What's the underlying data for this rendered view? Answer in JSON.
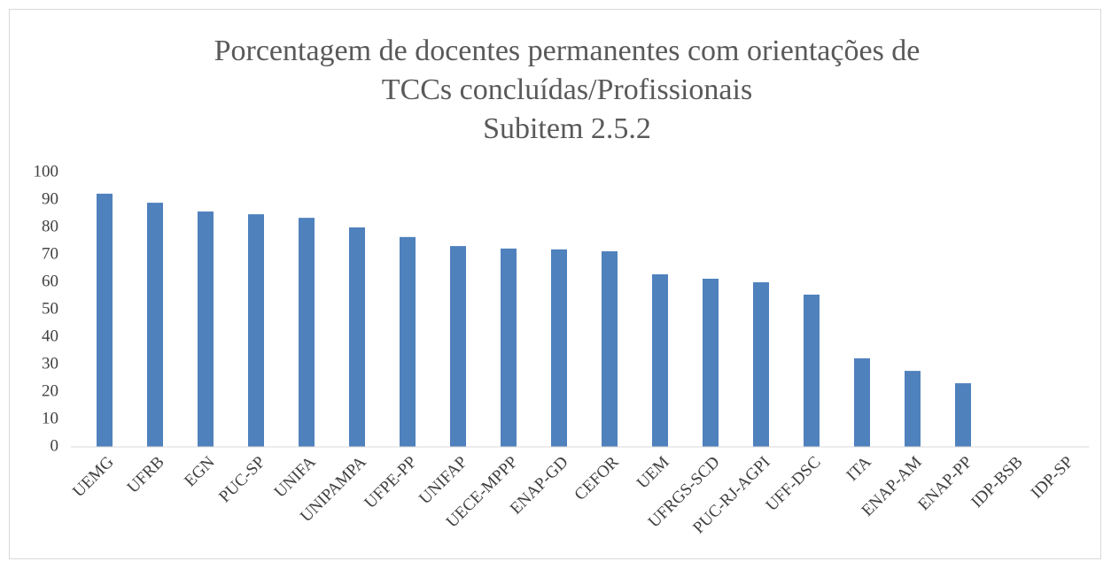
{
  "chart_data": {
    "type": "bar",
    "title": [
      "Porcentagem de docentes permanentes com orientações de",
      "TCCs concluídas/Profissionais"
    ],
    "subtitle": "Subitem 2.5.2",
    "categories": [
      "UEMG",
      "UFRB",
      "EGN",
      "PUC-SP",
      "UNIFA",
      "UNIPAMPA",
      "UFPE-PP",
      "UNIFAP",
      "UECE-MPPP",
      "ENAP-GD",
      "CEFOR",
      "UEM",
      "UFRGS-SCD",
      "PUC-RJ-AGPI",
      "UFF-DSC",
      "ITA",
      "ENAP-AM",
      "ENAP-PP",
      "IDP-BSB",
      "IDP-SP"
    ],
    "values": [
      92.3,
      89,
      85.8,
      84.8,
      83.5,
      80,
      76.5,
      73.2,
      72.3,
      72,
      71.3,
      62.9,
      61.3,
      60,
      55.5,
      32.3,
      27.7,
      23.2,
      0,
      0
    ],
    "color": "#4f81bd",
    "ylim": [
      0,
      100
    ],
    "yticks": [
      0,
      10,
      20,
      30,
      40,
      50,
      60,
      70,
      80,
      90,
      100
    ],
    "grid": false
  }
}
